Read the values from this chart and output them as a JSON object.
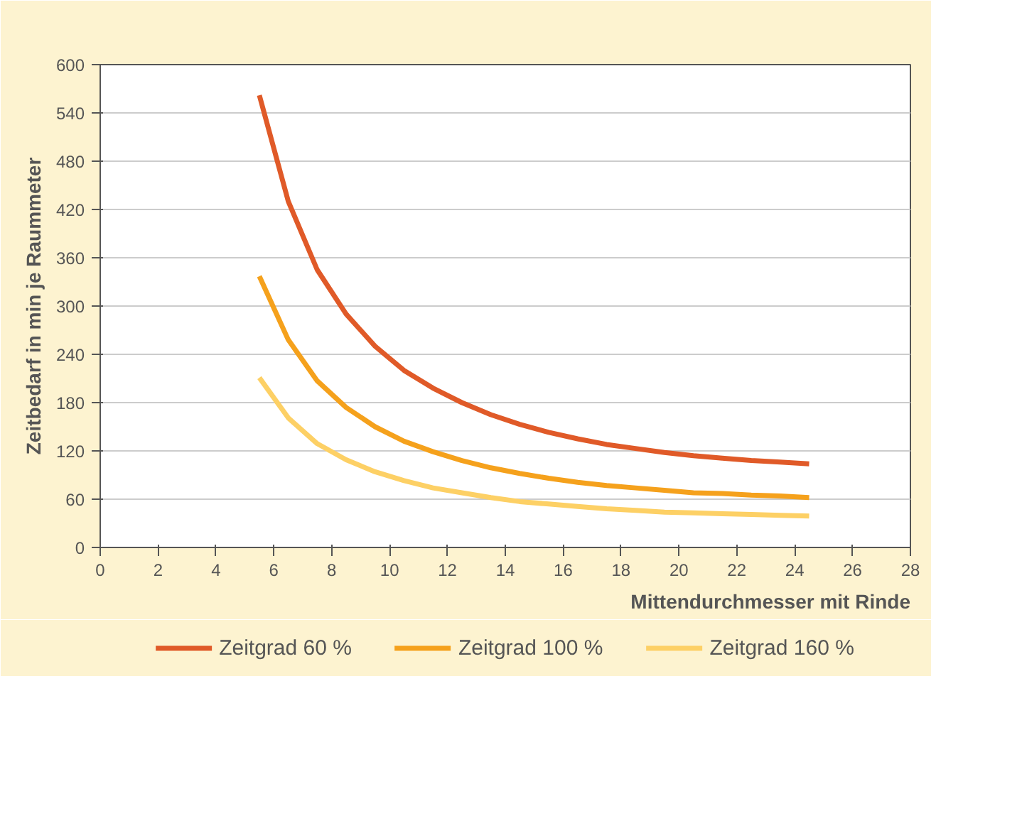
{
  "chart_data": {
    "type": "line",
    "xlabel": "Mittendurchmesser mit Rinde",
    "ylabel": "Zeitbedarf in min je Raummeter",
    "x": [
      5.5,
      6.5,
      7.5,
      8.5,
      9.5,
      10.5,
      11.5,
      12.5,
      13.5,
      14.5,
      15.5,
      16.5,
      17.5,
      18.5,
      19.5,
      20.5,
      21.5,
      22.5,
      23.5,
      24.5
    ],
    "series": [
      {
        "name": "Zeitgrad 60 %",
        "color": "#e05a28",
        "values": [
          562,
          430,
          345,
          290,
          250,
          220,
          198,
          180,
          165,
          153,
          143,
          135,
          128,
          123,
          118,
          114,
          111,
          108,
          106,
          104
        ]
      },
      {
        "name": "Zeitgrad 100 %",
        "color": "#f5a11c",
        "values": [
          337,
          258,
          207,
          174,
          150,
          132,
          119,
          108,
          99,
          92,
          86,
          81,
          77,
          74,
          71,
          68,
          67,
          65,
          64,
          62
        ]
      },
      {
        "name": "Zeitgrad 160 %",
        "color": "#fdd065",
        "values": [
          211,
          161,
          129,
          109,
          94,
          83,
          74,
          68,
          62,
          57,
          54,
          51,
          48,
          46,
          44,
          43,
          42,
          41,
          40,
          39
        ]
      }
    ],
    "xlim": [
      0,
      28
    ],
    "xticks": [
      0,
      2,
      4,
      6,
      8,
      10,
      12,
      14,
      16,
      18,
      20,
      22,
      24,
      26,
      28
    ],
    "ylim": [
      0,
      600
    ],
    "yticks": [
      0,
      60,
      120,
      180,
      240,
      300,
      360,
      420,
      480,
      540,
      600
    ],
    "grid": "y",
    "legend": "bottom",
    "marker": "none",
    "line_style": "solid"
  }
}
